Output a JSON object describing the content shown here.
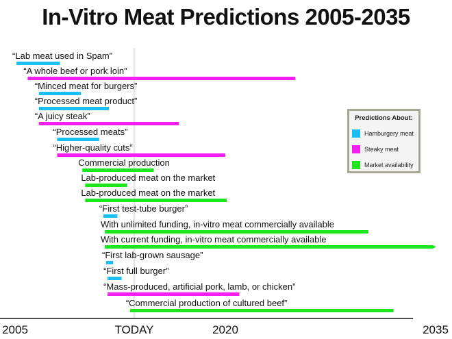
{
  "chart_data": {
    "type": "bar",
    "orientation": "horizontal-timeline",
    "title": "In-Vitro Meat Predictions 2005-2035",
    "xlim": [
      2005,
      2035
    ],
    "x_ticks": [
      {
        "value": 2005,
        "label": "2005"
      },
      {
        "value": 2013.5,
        "label": "TODAY"
      },
      {
        "value": 2020,
        "label": "2020"
      },
      {
        "value": 2035,
        "label": "2035"
      }
    ],
    "today": 2013.5,
    "legend": {
      "title": "Predictions About:",
      "placement": "right",
      "items": [
        {
          "key": "hamburgery",
          "label": "Hamburgery meat",
          "color": "#19bff5"
        },
        {
          "key": "steaky",
          "label": "Steaky meat",
          "color": "#f51ef0"
        },
        {
          "key": "market",
          "label": "Market availability",
          "color": "#1ee61e"
        }
      ]
    },
    "series": [
      {
        "label": "“Lab meat used in Spam”",
        "category": "hamburgery",
        "start": 2005.1,
        "end": 2008.2
      },
      {
        "label": "“A whole beef or pork loin”",
        "category": "steaky",
        "start": 2005.9,
        "end": 2025
      },
      {
        "label": "“Minced meat for burgers”",
        "category": "hamburgery",
        "start": 2006.7,
        "end": 2009.7
      },
      {
        "label": "“Processed meat product”",
        "category": "hamburgery",
        "start": 2006.7,
        "end": 2011.7
      },
      {
        "label": "“A juicy steak”",
        "category": "steaky",
        "start": 2006.7,
        "end": 2016.7
      },
      {
        "label": "“Processed meats”",
        "category": "hamburgery",
        "start": 2008,
        "end": 2011
      },
      {
        "label": "“Higher-quality cuts”",
        "category": "steaky",
        "start": 2008,
        "end": 2020
      },
      {
        "label": "Commercial production",
        "category": "market",
        "start": 2009.8,
        "end": 2014.9
      },
      {
        "label": "Lab-produced meat on the market",
        "category": "market",
        "start": 2010,
        "end": 2013
      },
      {
        "label": "Lab-produced meat on the market",
        "category": "market",
        "start": 2010,
        "end": 2020.1
      },
      {
        "label": "“First test-tube burger”",
        "category": "hamburgery",
        "start": 2011.3,
        "end": 2012.3
      },
      {
        "label": "With unlimited funding, in-vitro meat commercially available",
        "category": "market",
        "start": 2011.4,
        "end": 2030.2
      },
      {
        "label": "With current funding, in-vitro meat commercially available",
        "category": "market",
        "start": 2011.4,
        "end": 2035,
        "open_ended": true
      },
      {
        "label": "“First lab-grown sausage”",
        "category": "hamburgery",
        "start": 2011.5,
        "end": 2012
      },
      {
        "label": "“First full burger”",
        "category": "hamburgery",
        "start": 2011.6,
        "end": 2012.6
      },
      {
        "label": "“Mass-produced, artificial pork, lamb, or chicken”",
        "category": "steaky",
        "start": 2011.6,
        "end": 2021
      },
      {
        "label": "“Commercial production of cultured beef”",
        "category": "market",
        "start": 2013.2,
        "end": 2032
      }
    ]
  }
}
